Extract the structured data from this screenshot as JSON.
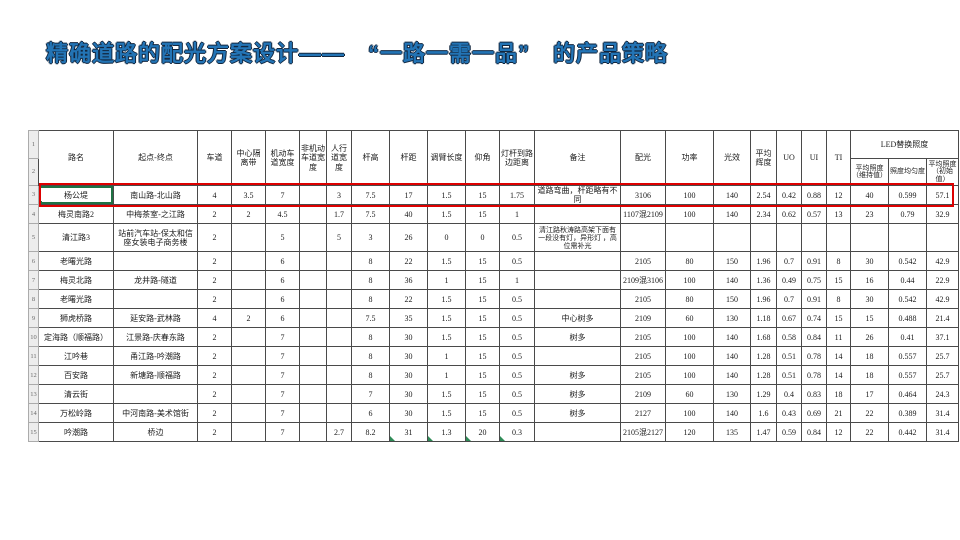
{
  "slide": {
    "title": "精确道路的配光方案设计——　“一路一需一品”　的产品策略"
  },
  "colors": {
    "title_blue": "#2374b5",
    "highlight_red": "#dd0000",
    "selection_green": "#1f7244"
  },
  "table": {
    "header_row_numbers": [
      "1",
      "2"
    ],
    "columns": [
      "路名",
      "起点-终点",
      "车道",
      "中心隔离带",
      "机动车道宽度",
      "非机动车道宽度",
      "人行道宽度",
      "杆高",
      "杆距",
      "调臂长度",
      "仰角",
      "灯杆到路边距离",
      "备注",
      "配光",
      "功率",
      "光效",
      "平均辉度",
      "UO",
      "UI",
      "TI"
    ],
    "led_group": {
      "label": "LED替换照度",
      "sub_columns": [
        "平均照度（维持值）",
        "照度均匀度",
        "平均照度（初始值）"
      ]
    },
    "rows": [
      {
        "num": "3",
        "highlighted": true,
        "cells": [
          "杨公堤",
          "南山路-北山路",
          "4",
          "3.5",
          "7",
          "",
          "3",
          "7.5",
          "17",
          "1.5",
          "15",
          "1.75",
          "道路弯曲，杆距略有不同",
          "3106",
          "100",
          "140",
          "2.54",
          "0.42",
          "0.88",
          "12",
          "40",
          "0.599",
          "57.1"
        ]
      },
      {
        "num": "4",
        "highlighted": false,
        "cells": [
          "梅灵南路2",
          "中梅茶室-之江路",
          "2",
          "2",
          "4.5",
          "",
          "1.7",
          "7.5",
          "40",
          "1.5",
          "15",
          "1",
          "",
          "1107混2109",
          "100",
          "140",
          "2.34",
          "0.62",
          "0.57",
          "13",
          "23",
          "0.79",
          "32.9"
        ]
      },
      {
        "num": "5",
        "highlighted": false,
        "tall": true,
        "cells": [
          "清江路3",
          "站前汽车站-保太和信座女装电子商务楼",
          "2",
          "",
          "5",
          "",
          "5",
          "3",
          "26",
          "0",
          "0",
          "0.5",
          "清江路秋涛路高架下面有一段没有灯，异形灯 ，高位需补光",
          "",
          "",
          "",
          "",
          "",
          "",
          "",
          "",
          "",
          ""
        ]
      },
      {
        "num": "6",
        "highlighted": false,
        "cells": [
          "老曙光路",
          "",
          "2",
          "",
          "6",
          "",
          "",
          "8",
          "22",
          "1.5",
          "15",
          "0.5",
          "",
          "2105",
          "80",
          "150",
          "1.96",
          "0.7",
          "0.91",
          "8",
          "30",
          "0.542",
          "42.9"
        ]
      },
      {
        "num": "7",
        "highlighted": false,
        "cells": [
          "梅灵北路",
          "龙井路-隧道",
          "2",
          "",
          "6",
          "",
          "",
          "8",
          "36",
          "1",
          "15",
          "1",
          "",
          "2109混3106",
          "100",
          "140",
          "1.36",
          "0.49",
          "0.75",
          "15",
          "16",
          "0.44",
          "22.9"
        ]
      },
      {
        "num": "8",
        "highlighted": false,
        "cells": [
          "老曙光路",
          "",
          "2",
          "",
          "6",
          "",
          "",
          "8",
          "22",
          "1.5",
          "15",
          "0.5",
          "",
          "2105",
          "80",
          "150",
          "1.96",
          "0.7",
          "0.91",
          "8",
          "30",
          "0.542",
          "42.9"
        ]
      },
      {
        "num": "9",
        "highlighted": false,
        "cells": [
          "狮虎桥路",
          "延安路-武林路",
          "4",
          "2",
          "6",
          "",
          "",
          "7.5",
          "35",
          "1.5",
          "15",
          "0.5",
          "中心树多",
          "2109",
          "60",
          "130",
          "1.18",
          "0.67",
          "0.74",
          "15",
          "15",
          "0.488",
          "21.4"
        ]
      },
      {
        "num": "10",
        "highlighted": false,
        "cells": [
          "定海路（顺福路）",
          "江景路-庆春东路",
          "2",
          "",
          "7",
          "",
          "",
          "8",
          "30",
          "1.5",
          "15",
          "0.5",
          "树多",
          "2105",
          "100",
          "140",
          "1.68",
          "0.58",
          "0.84",
          "11",
          "26",
          "0.41",
          "37.1"
        ]
      },
      {
        "num": "11",
        "highlighted": false,
        "cells": [
          "江吟巷",
          "甬江路-吟潮路",
          "2",
          "",
          "7",
          "",
          "",
          "8",
          "30",
          "1",
          "15",
          "0.5",
          "",
          "2105",
          "100",
          "140",
          "1.28",
          "0.51",
          "0.78",
          "14",
          "18",
          "0.557",
          "25.7"
        ]
      },
      {
        "num": "12",
        "highlighted": false,
        "cells": [
          "百安路",
          "新塘路-顺福路",
          "2",
          "",
          "7",
          "",
          "",
          "8",
          "30",
          "1",
          "15",
          "0.5",
          "树多",
          "2105",
          "100",
          "140",
          "1.28",
          "0.51",
          "0.78",
          "14",
          "18",
          "0.557",
          "25.7"
        ]
      },
      {
        "num": "13",
        "highlighted": false,
        "cells": [
          "清云街",
          "",
          "2",
          "",
          "7",
          "",
          "",
          "7",
          "30",
          "1.5",
          "15",
          "0.5",
          "树多",
          "2109",
          "60",
          "130",
          "1.29",
          "0.4",
          "0.83",
          "18",
          "17",
          "0.464",
          "24.3"
        ]
      },
      {
        "num": "14",
        "highlighted": false,
        "cells": [
          "万松岭路",
          "中河南路-美术馆街",
          "2",
          "",
          "7",
          "",
          "",
          "6",
          "30",
          "1.5",
          "15",
          "0.5",
          "树多",
          "2127",
          "100",
          "140",
          "1.6",
          "0.43",
          "0.69",
          "21",
          "22",
          "0.389",
          "31.4"
        ]
      },
      {
        "num": "15",
        "highlighted": false,
        "flagged": true,
        "cells": [
          "吟潮路",
          "桥边",
          "2",
          "",
          "7",
          "",
          "2.7",
          "8.2",
          "31",
          "1.3",
          "20",
          "0.3",
          "",
          "2105混2127",
          "120",
          "135",
          "1.47",
          "0.59",
          "0.84",
          "12",
          "22",
          "0.442",
          "31.4"
        ]
      }
    ]
  }
}
